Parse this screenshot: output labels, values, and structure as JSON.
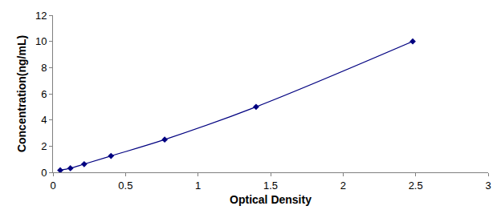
{
  "chart_data": {
    "type": "line",
    "x_label": "Optical Density",
    "y_label": "Concentration(ng/mL)",
    "x": [
      0.05,
      0.12,
      0.215,
      0.4,
      0.77,
      1.4,
      2.48
    ],
    "values": [
      0.156,
      0.312,
      0.625,
      1.25,
      2.5,
      5,
      10
    ],
    "color": "#000080",
    "marker": "diamond",
    "line_style": "solid",
    "xlim": [
      0,
      3
    ],
    "xticks": [
      0,
      0.5,
      1,
      1.5,
      2,
      2.5,
      3
    ],
    "ylim": [
      0,
      12
    ],
    "yticks": [
      0,
      2,
      4,
      6,
      8,
      10,
      12
    ],
    "grid": false
  }
}
